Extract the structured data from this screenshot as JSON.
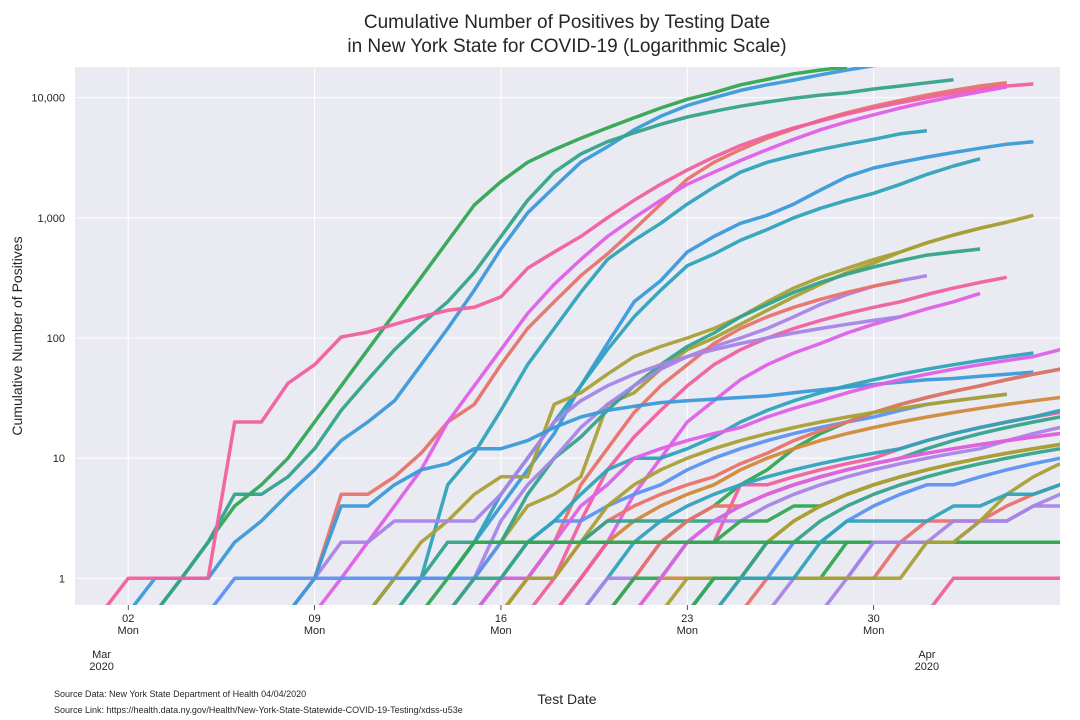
{
  "chart_data": {
    "type": "line",
    "title_lines": [
      "Cumulative Number of Positives by Testing Date",
      "in New York State for COVID-19 (Logarithmic Scale)"
    ],
    "xlabel": "Test Date",
    "ylabel": "Cumulative Number of Positives",
    "y_scale": "log",
    "ylim": [
      0.6,
      18000
    ],
    "xlim": [
      "2020-02-29",
      "2020-04-06"
    ],
    "grid": true,
    "x_ticks": [
      {
        "date": "2020-03-02",
        "day": "02",
        "weekday": "Mon"
      },
      {
        "date": "2020-03-09",
        "day": "09",
        "weekday": "Mon"
      },
      {
        "date": "2020-03-16",
        "day": "16",
        "weekday": "Mon"
      },
      {
        "date": "2020-03-23",
        "day": "23",
        "weekday": "Mon"
      },
      {
        "date": "2020-03-30",
        "day": "30",
        "weekday": "Mon"
      }
    ],
    "month_ticks": [
      {
        "date": "2020-03-01",
        "month": "Mar",
        "year": "2020"
      },
      {
        "date": "2020-04-01",
        "month": "Apr",
        "year": "2020"
      }
    ],
    "y_ticks": [
      {
        "value": 1,
        "label": "1"
      },
      {
        "value": 10,
        "label": "10"
      },
      {
        "value": 100,
        "label": "100"
      },
      {
        "value": 1000,
        "label": "1,000"
      },
      {
        "value": 10000,
        "label": "10,000"
      }
    ],
    "series": [
      {
        "color": "#3a9ad9",
        "start": "2020-03-03",
        "values": [
          1,
          1,
          1,
          2,
          3,
          5,
          8,
          14,
          20,
          30,
          60,
          120,
          250,
          550,
          1100,
          1800,
          2900,
          3900,
          5400,
          7000,
          8600,
          10000,
          11500,
          12800,
          14000,
          15500,
          17000,
          18500,
          19800,
          21000
        ]
      },
      {
        "color": "#32a852",
        "start": "2020-03-04",
        "values": [
          1,
          2,
          4,
          6,
          10,
          20,
          40,
          80,
          160,
          320,
          640,
          1280,
          2000,
          2900,
          3700,
          4600,
          5600,
          6800,
          8200,
          9700,
          11000,
          12800,
          14200,
          15800,
          17000,
          18000
        ]
      },
      {
        "color": "#34a38a",
        "start": "2020-03-04",
        "values": [
          1,
          2,
          5,
          5,
          7,
          12,
          25,
          45,
          80,
          130,
          200,
          350,
          700,
          1400,
          2400,
          3400,
          4300,
          5100,
          6000,
          6900,
          7700,
          8500,
          9200,
          9900,
          10500,
          11000,
          11800,
          12500,
          13300,
          14100
        ]
      },
      {
        "color": "#e8736a",
        "start": "2020-03-09",
        "values": [
          1,
          5,
          5,
          7,
          11,
          20,
          28,
          60,
          120,
          200,
          330,
          500,
          800,
          1300,
          2100,
          2900,
          3700,
          4600,
          5500,
          6500,
          7500,
          8500,
          9500,
          10500,
          11500,
          12500,
          13300
        ]
      },
      {
        "color": "#f0609e",
        "start": "2020-03-02",
        "values": [
          1,
          1,
          1,
          1,
          20,
          20,
          42,
          60,
          102,
          112,
          130,
          150,
          170,
          180,
          220,
          380,
          520,
          700,
          1000,
          1400,
          1900,
          2500,
          3200,
          4000,
          4800,
          5600,
          6400,
          7300,
          8200,
          9100,
          10000,
          10900,
          11700,
          12500,
          13000
        ]
      },
      {
        "color": "#e060e8",
        "start": "2020-03-10",
        "values": [
          1,
          2,
          4,
          8,
          20,
          40,
          80,
          160,
          280,
          450,
          700,
          1000,
          1400,
          1900,
          2400,
          3000,
          3700,
          4500,
          5400,
          6300,
          7200,
          8200,
          9200,
          10200,
          11200,
          12300
        ]
      },
      {
        "color": "#2fa3b8",
        "start": "2020-03-12",
        "values": [
          1,
          1,
          6,
          11,
          25,
          60,
          120,
          240,
          450,
          650,
          900,
          1300,
          1800,
          2400,
          2900,
          3300,
          3700,
          4100,
          4500,
          5000,
          5300
        ]
      },
      {
        "color": "#3a9ad9",
        "start": "2020-03-13",
        "values": [
          1,
          1,
          2,
          4,
          8,
          16,
          40,
          90,
          200,
          300,
          520,
          700,
          900,
          1050,
          1300,
          1700,
          2200,
          2600,
          2900,
          3200,
          3500,
          3800,
          4100,
          4300
        ]
      },
      {
        "color": "#2fa3b8",
        "start": "2020-03-12",
        "values": [
          1,
          1,
          1,
          2,
          5,
          10,
          20,
          40,
          80,
          150,
          250,
          400,
          500,
          650,
          800,
          1000,
          1200,
          1400,
          1600,
          1900,
          2300,
          2700,
          3100
        ]
      },
      {
        "color": "#a8a035",
        "start": "2020-03-12",
        "values": [
          1,
          2,
          3,
          5,
          7,
          7,
          28,
          35,
          50,
          70,
          85,
          100,
          120,
          150,
          200,
          260,
          320,
          380,
          450,
          520,
          620,
          720,
          820,
          920,
          1050
        ]
      },
      {
        "color": "#a8a035",
        "start": "2020-03-15",
        "values": [
          1,
          2,
          4,
          5,
          7,
          28,
          35,
          55,
          80,
          100,
          130,
          170,
          220,
          280,
          350,
          420,
          520,
          620,
          720,
          820,
          920
        ]
      },
      {
        "color": "#34a38a",
        "start": "2020-03-13",
        "values": [
          1,
          2,
          2,
          2,
          5,
          10,
          15,
          25,
          40,
          60,
          85,
          110,
          150,
          190,
          240,
          290,
          340,
          390,
          440,
          490,
          520,
          550
        ]
      },
      {
        "color": "#a784e8",
        "start": "2020-03-15",
        "values": [
          1,
          3,
          6,
          10,
          18,
          28,
          40,
          55,
          70,
          85,
          100,
          120,
          150,
          190,
          230,
          270,
          300,
          330
        ]
      },
      {
        "color": "#e8736a",
        "start": "2020-03-17",
        "values": [
          1,
          2,
          6,
          12,
          24,
          40,
          60,
          90,
          120,
          150,
          180,
          210,
          240,
          270,
          300
        ]
      },
      {
        "color": "#f0609e",
        "start": "2020-03-18",
        "values": [
          1,
          3,
          8,
          15,
          25,
          40,
          60,
          80,
          100,
          120,
          140,
          160,
          180,
          200,
          230,
          260,
          290,
          320
        ]
      },
      {
        "color": "#e060e8",
        "start": "2020-03-19",
        "values": [
          1,
          2,
          5,
          10,
          20,
          30,
          45,
          60,
          75,
          90,
          110,
          130,
          150,
          175,
          200,
          235
        ]
      },
      {
        "color": "#a784e8",
        "start": "2020-03-09",
        "values": [
          1,
          2,
          2,
          3,
          3,
          3,
          3,
          5,
          10,
          20,
          30,
          40,
          50,
          60,
          70,
          80,
          90,
          100,
          110,
          120,
          130,
          140,
          150
        ]
      },
      {
        "color": "#3a9ad9",
        "start": "2020-03-09",
        "values": [
          1,
          4,
          4,
          6,
          8,
          9,
          12,
          12,
          14,
          18,
          22,
          25,
          27,
          29,
          30,
          31,
          32,
          33,
          35,
          37,
          39,
          41,
          43,
          45,
          46,
          48,
          50,
          52
        ]
      },
      {
        "color": "#5b94f0",
        "start": "2020-03-06",
        "values": [
          1,
          1,
          1,
          1,
          1,
          1,
          1,
          1,
          1,
          1,
          2,
          2,
          3,
          3,
          4,
          5,
          6,
          8,
          10,
          12,
          14,
          16,
          18,
          20,
          22,
          25,
          28,
          30,
          32,
          34
        ]
      },
      {
        "color": "#2fa3b8",
        "start": "2020-03-16",
        "values": [
          1,
          2,
          3,
          5,
          8,
          10,
          10,
          12,
          15,
          20,
          25,
          30,
          35,
          40,
          45,
          50,
          55,
          60,
          65,
          70,
          75
        ]
      },
      {
        "color": "#32a852",
        "start": "2020-03-16",
        "values": [
          1,
          1,
          2,
          2,
          2,
          2,
          2,
          3,
          4,
          6,
          8,
          12,
          16,
          20,
          24,
          28,
          32,
          36,
          40,
          45,
          50,
          55
        ]
      },
      {
        "color": "#e8736a",
        "start": "2020-03-17",
        "values": [
          1,
          1,
          2,
          3,
          4,
          5,
          6,
          7,
          9,
          11,
          14,
          17,
          20,
          24,
          28,
          32,
          36,
          40,
          45,
          50,
          55,
          62,
          70
        ]
      },
      {
        "color": "#d08a3a",
        "start": "2020-03-19",
        "values": [
          1,
          2,
          3,
          4,
          5,
          6,
          8,
          10,
          12,
          14,
          16,
          18,
          20,
          22,
          24,
          26,
          28,
          30,
          32,
          36,
          40
        ]
      },
      {
        "color": "#e060e8",
        "start": "2020-03-16",
        "values": [
          1,
          1,
          2,
          4,
          6,
          10,
          12,
          14,
          16,
          18,
          22,
          26,
          30,
          35,
          40,
          45,
          50,
          55,
          60,
          65,
          70,
          80,
          90
        ]
      },
      {
        "color": "#f0609e",
        "start": "2020-03-19",
        "values": [
          1,
          2,
          2,
          2,
          2,
          2,
          6,
          6,
          7,
          8,
          9,
          10,
          12,
          14,
          16,
          18,
          20,
          22,
          24,
          26,
          28,
          30
        ]
      },
      {
        "color": "#a8a035",
        "start": "2020-03-17",
        "values": [
          1,
          1,
          2,
          4,
          6,
          8,
          10,
          12,
          14,
          16,
          18,
          20,
          22,
          24,
          26,
          28,
          30,
          32,
          34
        ]
      },
      {
        "color": "#34a38a",
        "start": "2020-03-15",
        "values": [
          1,
          1,
          2,
          2,
          2,
          3,
          3,
          3,
          3,
          3,
          4,
          5,
          6,
          7,
          8,
          9,
          10,
          12,
          14,
          16,
          18,
          20,
          22,
          25
        ]
      },
      {
        "color": "#2fa3b8",
        "start": "2020-03-20",
        "values": [
          1,
          2,
          3,
          4,
          5,
          6,
          7,
          8,
          9,
          10,
          11,
          12,
          14,
          16,
          18,
          20,
          22,
          25
        ]
      },
      {
        "color": "#a784e8",
        "start": "2020-03-20",
        "values": [
          1,
          1,
          2,
          2,
          3,
          3,
          4,
          5,
          6,
          7,
          8,
          9,
          10,
          11,
          12,
          14,
          16,
          18
        ]
      },
      {
        "color": "#e8736a",
        "start": "2020-03-21",
        "values": [
          1,
          2,
          3,
          4,
          4,
          5,
          6,
          7,
          8,
          9,
          10,
          11,
          12,
          13,
          14,
          15,
          16
        ]
      },
      {
        "color": "#32a852",
        "start": "2020-03-21",
        "values": [
          1,
          1,
          2,
          2,
          3,
          3,
          4,
          4,
          5,
          6,
          7,
          8,
          9,
          10,
          11,
          12,
          13,
          14
        ]
      },
      {
        "color": "#d08a3a",
        "start": "2020-03-22",
        "values": [
          1,
          1,
          1,
          1,
          2,
          3,
          4,
          5,
          6,
          7,
          8,
          9,
          10,
          11,
          12,
          13,
          14
        ]
      },
      {
        "color": "#e060e8",
        "start": "2020-03-22",
        "values": [
          1,
          2,
          3,
          4,
          5,
          6,
          7,
          8,
          9,
          10,
          11,
          12,
          13,
          14,
          15,
          16
        ]
      },
      {
        "color": "#a8a035",
        "start": "2020-03-23",
        "values": [
          1,
          1,
          1,
          2,
          3,
          4,
          5,
          6,
          7,
          8,
          9,
          10,
          11,
          12,
          13
        ]
      },
      {
        "color": "#34a38a",
        "start": "2020-03-24",
        "values": [
          1,
          1,
          2,
          2,
          3,
          4,
          5,
          6,
          7,
          8,
          9,
          10,
          11,
          12
        ]
      },
      {
        "color": "#5b94f0",
        "start": "2020-03-24",
        "values": [
          1,
          1,
          1,
          2,
          2,
          3,
          4,
          5,
          6,
          6,
          7,
          8,
          9,
          10
        ]
      },
      {
        "color": "#a784e8",
        "start": "2020-03-27",
        "values": [
          1,
          1,
          1,
          2,
          2,
          2,
          2,
          3,
          3,
          4,
          5,
          6
        ]
      },
      {
        "color": "#e8736a",
        "start": "2020-03-26",
        "values": [
          1,
          1,
          1,
          1,
          1,
          2,
          3,
          3,
          3,
          4,
          5,
          6,
          7
        ]
      },
      {
        "color": "#32a852",
        "start": "2020-03-14",
        "values": [
          1,
          2,
          2,
          2,
          2,
          2,
          2,
          2,
          2,
          2,
          2,
          2,
          2,
          2,
          2,
          2,
          2,
          2,
          2,
          2,
          2,
          2,
          2,
          2,
          2
        ]
      },
      {
        "color": "#32a852",
        "start": "2020-03-24",
        "values": [
          1,
          1,
          1,
          1,
          1,
          2,
          2,
          2,
          2,
          2,
          2,
          2,
          2,
          2,
          2,
          3
        ]
      },
      {
        "color": "#a784e8",
        "start": "2020-03-29",
        "values": [
          1,
          2,
          2,
          2,
          3,
          3,
          3,
          4,
          4,
          4
        ]
      },
      {
        "color": "#a8a035",
        "start": "2020-03-25",
        "values": [
          1,
          1,
          1,
          1,
          1,
          1,
          1,
          2,
          2,
          3,
          5,
          7,
          9
        ]
      },
      {
        "color": "#f0609e",
        "start": "2020-04-02",
        "values": [
          1,
          1,
          1,
          1,
          1
        ]
      },
      {
        "color": "#2fa3b8",
        "start": "2020-03-25",
        "values": [
          1,
          1,
          1,
          2,
          3,
          3,
          3,
          3,
          4,
          4,
          5,
          5,
          6,
          7
        ]
      }
    ],
    "notes": [
      "Source Data: New York State Department of Health 04/04/2020",
      "Source Link: https://health.data.ny.gov/Health/New-York-State-Statewide-COVID-19-Testing/xdss-u53e"
    ]
  }
}
